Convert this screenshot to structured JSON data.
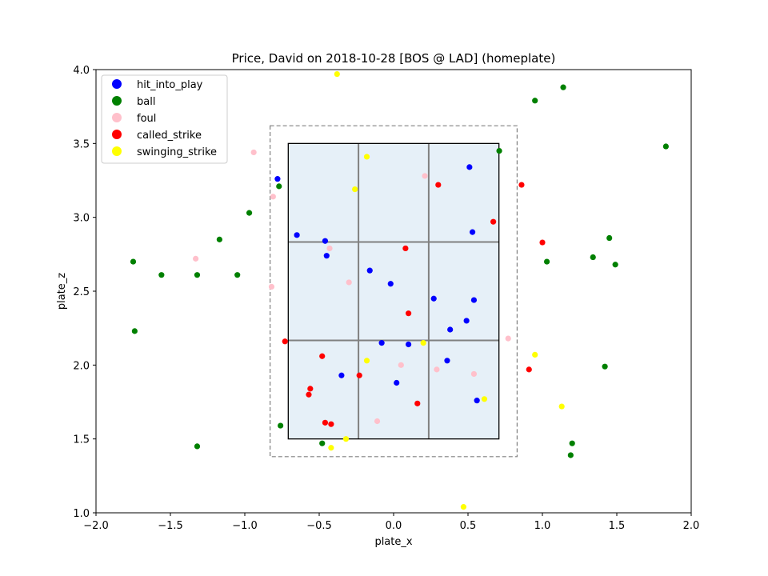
{
  "chart_data": {
    "type": "scatter",
    "title": "Price, David on 2018-10-28 [BOS @ LAD] (homeplate)",
    "xlabel": "plate_x",
    "ylabel": "plate_z",
    "xlim": [
      -2.0,
      2.0
    ],
    "ylim": [
      1.0,
      4.0
    ],
    "xticks": [
      "−2.0",
      "−1.5",
      "−1.0",
      "−0.5",
      "0.0",
      "0.5",
      "1.0",
      "1.5",
      "2.0"
    ],
    "yticks": [
      "1.0",
      "1.5",
      "2.0",
      "2.5",
      "3.0",
      "3.5",
      "4.0"
    ],
    "xtick_values": [
      -2.0,
      -1.5,
      -1.0,
      -0.5,
      0.0,
      0.5,
      1.0,
      1.5,
      2.0
    ],
    "ytick_values": [
      1.0,
      1.5,
      2.0,
      2.5,
      3.0,
      3.5,
      4.0
    ],
    "grid": false,
    "legend_position": "top-left",
    "strike_zone": {
      "x": [
        -0.708,
        0.708
      ],
      "z": [
        1.5,
        3.5
      ],
      "fill_color": "#e6f0f8",
      "grid_color": "#808080"
    },
    "outer_zone": {
      "x": [
        -0.83,
        0.83
      ],
      "z": [
        1.38,
        3.62
      ],
      "color": "#808080"
    },
    "series": [
      {
        "name": "hit_into_play",
        "color": "#0000ff",
        "points": [
          [
            -0.78,
            3.26
          ],
          [
            -0.65,
            2.88
          ],
          [
            -0.46,
            2.84
          ],
          [
            -0.45,
            2.74
          ],
          [
            -0.16,
            2.64
          ],
          [
            -0.02,
            2.55
          ],
          [
            0.27,
            2.45
          ],
          [
            0.54,
            2.44
          ],
          [
            0.38,
            2.24
          ],
          [
            0.49,
            2.3
          ],
          [
            -0.08,
            2.15
          ],
          [
            0.1,
            2.14
          ],
          [
            0.36,
            2.03
          ],
          [
            -0.35,
            1.93
          ],
          [
            0.02,
            1.88
          ],
          [
            0.56,
            1.76
          ],
          [
            0.51,
            3.34
          ],
          [
            0.53,
            2.9
          ]
        ]
      },
      {
        "name": "ball",
        "color": "#008000",
        "points": [
          [
            -0.77,
            3.21
          ],
          [
            -0.97,
            3.03
          ],
          [
            -1.17,
            2.85
          ],
          [
            -1.75,
            2.7
          ],
          [
            -1.56,
            2.61
          ],
          [
            -1.32,
            2.61
          ],
          [
            -1.05,
            2.61
          ],
          [
            -1.74,
            2.23
          ],
          [
            -1.32,
            1.45
          ],
          [
            -0.76,
            1.59
          ],
          [
            -0.48,
            1.47
          ],
          [
            0.71,
            3.45
          ],
          [
            0.95,
            3.79
          ],
          [
            1.14,
            3.88
          ],
          [
            1.83,
            3.48
          ],
          [
            1.45,
            2.86
          ],
          [
            1.34,
            2.73
          ],
          [
            1.03,
            2.7
          ],
          [
            1.49,
            2.68
          ],
          [
            1.42,
            1.99
          ],
          [
            1.2,
            1.47
          ],
          [
            1.19,
            1.39
          ]
        ]
      },
      {
        "name": "foul",
        "color": "#ffc0cb",
        "points": [
          [
            -0.94,
            3.44
          ],
          [
            -0.81,
            3.14
          ],
          [
            -1.33,
            2.72
          ],
          [
            -0.82,
            2.53
          ],
          [
            -0.43,
            2.79
          ],
          [
            -0.3,
            2.56
          ],
          [
            0.21,
            3.28
          ],
          [
            0.77,
            2.18
          ],
          [
            0.05,
            2.0
          ],
          [
            0.29,
            1.97
          ],
          [
            0.54,
            1.94
          ],
          [
            -0.11,
            1.62
          ]
        ]
      },
      {
        "name": "called_strike",
        "color": "#ff0000",
        "points": [
          [
            0.3,
            3.22
          ],
          [
            0.86,
            3.22
          ],
          [
            0.67,
            2.97
          ],
          [
            1.0,
            2.83
          ],
          [
            0.08,
            2.79
          ],
          [
            0.1,
            2.35
          ],
          [
            -0.73,
            2.16
          ],
          [
            -0.48,
            2.06
          ],
          [
            -0.23,
            1.93
          ],
          [
            -0.56,
            1.84
          ],
          [
            -0.57,
            1.8
          ],
          [
            0.16,
            1.74
          ],
          [
            -0.46,
            1.61
          ],
          [
            -0.42,
            1.6
          ],
          [
            0.91,
            1.97
          ]
        ]
      },
      {
        "name": "swinging_strike",
        "color": "#ffff00",
        "points": [
          [
            -0.38,
            3.97
          ],
          [
            -0.18,
            3.41
          ],
          [
            -0.26,
            3.19
          ],
          [
            0.2,
            2.15
          ],
          [
            -0.18,
            2.03
          ],
          [
            0.95,
            2.07
          ],
          [
            0.61,
            1.77
          ],
          [
            1.13,
            1.72
          ],
          [
            -0.32,
            1.5
          ],
          [
            -0.42,
            1.44
          ],
          [
            0.47,
            1.04
          ]
        ]
      }
    ]
  }
}
